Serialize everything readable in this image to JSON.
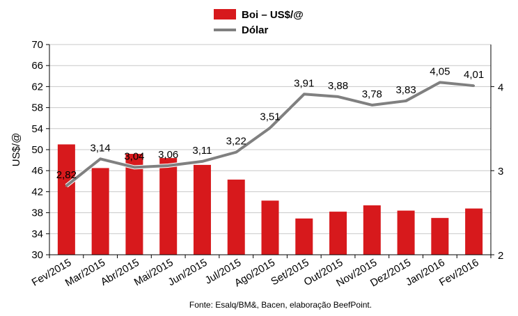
{
  "chart_data": {
    "type": "bar",
    "categories": [
      "Fev/2015",
      "Mar/2015",
      "Abr/2015",
      "Mai/2015",
      "Jun/2015",
      "Jul/2015",
      "Ago/2015",
      "Set/2015",
      "Out/2015",
      "Nov/2015",
      "Dez/2015",
      "Jan/2016",
      "Fev/2016"
    ],
    "series": [
      {
        "name": "Boi – US$/@",
        "type": "bar",
        "axis": "left",
        "color": "#d7191c",
        "values": [
          51.0,
          46.5,
          49.2,
          48.4,
          47.1,
          44.3,
          40.3,
          36.9,
          38.2,
          39.4,
          38.4,
          37.0,
          38.8
        ]
      },
      {
        "name": "Dólar",
        "type": "line",
        "axis": "right",
        "color": "#808080",
        "values": [
          2.82,
          3.14,
          3.04,
          3.06,
          3.11,
          3.22,
          3.51,
          3.91,
          3.88,
          3.78,
          3.83,
          4.05,
          4.01
        ],
        "labels": [
          "2,82",
          "3,14",
          "3,04",
          "3,06",
          "3,11",
          "3,22",
          "3,51",
          "3,91",
          "3,88",
          "3,78",
          "3,83",
          "4,05",
          "4,01"
        ]
      }
    ],
    "ylabel": "US$/@",
    "ylim": [
      30,
      70
    ],
    "yticks": [
      "30",
      "34",
      "38",
      "42",
      "46",
      "50",
      "54",
      "58",
      "62",
      "66",
      "70"
    ],
    "y2lim": [
      2,
      4.5
    ],
    "y2ticks": [
      "2",
      "3",
      "4"
    ],
    "grid": true,
    "legend": "top-center",
    "source": "Fonte:  Esalq/BM&,  Bacen,  elaboração  BeefPoint."
  }
}
